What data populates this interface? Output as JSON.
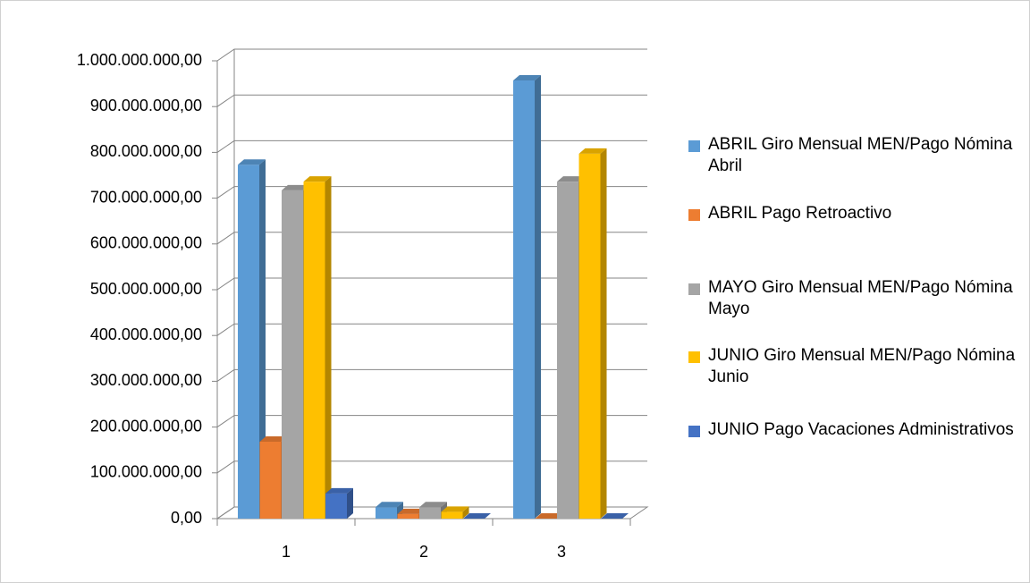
{
  "chart_data": {
    "type": "bar3d",
    "categories": [
      "1",
      "2",
      "3"
    ],
    "series": [
      {
        "name": "ABRIL Giro Mensual MEN/Pago Nómina Abril",
        "color": "#5b9bd5",
        "values": [
          773000000,
          25000000,
          957000000
        ]
      },
      {
        "name": "ABRIL Pago Retroactivo",
        "color": "#ed7d31",
        "values": [
          168000000,
          10000000,
          0
        ]
      },
      {
        "name": "MAYO Giro Mensual MEN/Pago Nómina Mayo",
        "color": "#a5a5a5",
        "values": [
          717000000,
          25000000,
          736000000
        ]
      },
      {
        "name": "JUNIO Giro Mensual MEN/Pago Nómina Junio",
        "color": "#ffc000",
        "values": [
          736000000,
          15000000,
          797000000
        ]
      },
      {
        "name": "JUNIO Pago Vacaciones Administrativos",
        "color": "#4472c4",
        "values": [
          55000000,
          0,
          0
        ]
      }
    ],
    "ylim": [
      0,
      1000000000
    ],
    "yticks": [
      {
        "value": 0,
        "label": "0,00"
      },
      {
        "value": 100000000,
        "label": "100.000.000,00"
      },
      {
        "value": 200000000,
        "label": "200.000.000,00"
      },
      {
        "value": 300000000,
        "label": "300.000.000,00"
      },
      {
        "value": 400000000,
        "label": "400.000.000,00"
      },
      {
        "value": 500000000,
        "label": "500.000.000,00"
      },
      {
        "value": 600000000,
        "label": "600.000.000,00"
      },
      {
        "value": 700000000,
        "label": "700.000.000,00"
      },
      {
        "value": 800000000,
        "label": "800.000.000,00"
      },
      {
        "value": 900000000,
        "label": "900.000.000,00"
      },
      {
        "value": 1000000000,
        "label": "1.000.000.000,00"
      }
    ],
    "grid": true,
    "legend": "right"
  }
}
